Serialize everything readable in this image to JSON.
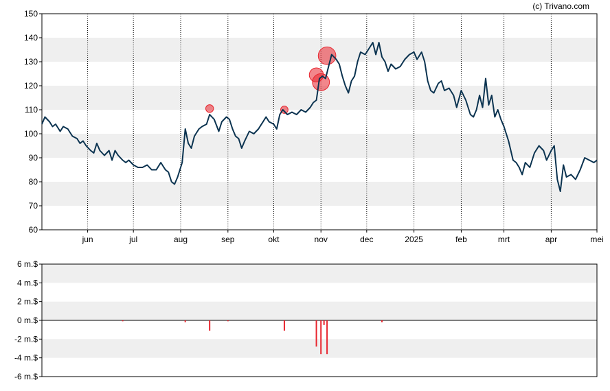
{
  "copyright": "(c) Trivano.com",
  "chart_data": [
    {
      "type": "line",
      "ylim": [
        60,
        150
      ],
      "yticks": [
        60,
        70,
        80,
        90,
        100,
        110,
        120,
        130,
        140,
        150
      ],
      "x_range": [
        "2024-05-02",
        "2025-05-01"
      ],
      "months": [
        {
          "label": "jun",
          "date": "2024-06-01"
        },
        {
          "label": "jul",
          "date": "2024-07-01"
        },
        {
          "label": "aug",
          "date": "2024-08-01"
        },
        {
          "label": "sep",
          "date": "2024-09-01"
        },
        {
          "label": "okt",
          "date": "2024-10-01"
        },
        {
          "label": "nov",
          "date": "2024-11-01"
        },
        {
          "label": "dec",
          "date": "2024-12-01"
        },
        {
          "label": "2025",
          "date": "2025-01-01"
        },
        {
          "label": "feb",
          "date": "2025-02-01"
        },
        {
          "label": "mrt",
          "date": "2025-03-01"
        },
        {
          "label": "apr",
          "date": "2025-04-01"
        },
        {
          "label": "mei",
          "date": "2025-05-01"
        }
      ],
      "grid": "vertical dotted lines at month starts, alternating horizontal bands",
      "series": [
        {
          "color": "#0b3350",
          "points": [
            [
              "2024-05-02",
              104
            ],
            [
              "2024-05-04",
              107
            ],
            [
              "2024-05-07",
              105
            ],
            [
              "2024-05-09",
              103
            ],
            [
              "2024-05-11",
              104
            ],
            [
              "2024-05-14",
              101
            ],
            [
              "2024-05-16",
              103
            ],
            [
              "2024-05-19",
              102
            ],
            [
              "2024-05-22",
              99
            ],
            [
              "2024-05-25",
              98
            ],
            [
              "2024-05-27",
              96
            ],
            [
              "2024-05-29",
              97
            ],
            [
              "2024-05-31",
              95
            ],
            [
              "2024-06-03",
              93
            ],
            [
              "2024-06-05",
              92
            ],
            [
              "2024-06-07",
              96
            ],
            [
              "2024-06-09",
              93
            ],
            [
              "2024-06-12",
              91
            ],
            [
              "2024-06-15",
              93
            ],
            [
              "2024-06-17",
              89
            ],
            [
              "2024-06-19",
              93
            ],
            [
              "2024-06-21",
              91
            ],
            [
              "2024-06-24",
              89
            ],
            [
              "2024-06-26",
              88
            ],
            [
              "2024-06-28",
              89
            ],
            [
              "2024-07-01",
              87
            ],
            [
              "2024-07-04",
              86
            ],
            [
              "2024-07-07",
              86
            ],
            [
              "2024-07-10",
              87
            ],
            [
              "2024-07-13",
              85
            ],
            [
              "2024-07-16",
              85
            ],
            [
              "2024-07-19",
              88
            ],
            [
              "2024-07-22",
              85
            ],
            [
              "2024-07-24",
              84
            ],
            [
              "2024-07-26",
              80
            ],
            [
              "2024-07-28",
              79
            ],
            [
              "2024-07-30",
              82
            ],
            [
              "2024-08-02",
              88
            ],
            [
              "2024-08-04",
              102
            ],
            [
              "2024-08-06",
              96
            ],
            [
              "2024-08-08",
              94
            ],
            [
              "2024-08-10",
              99
            ],
            [
              "2024-08-13",
              102
            ],
            [
              "2024-08-15",
              103
            ],
            [
              "2024-08-18",
              104
            ],
            [
              "2024-08-20",
              108
            ],
            [
              "2024-08-23",
              106
            ],
            [
              "2024-08-26",
              101
            ],
            [
              "2024-08-28",
              105
            ],
            [
              "2024-08-31",
              107
            ],
            [
              "2024-09-02",
              106
            ],
            [
              "2024-09-04",
              102
            ],
            [
              "2024-09-06",
              99
            ],
            [
              "2024-09-08",
              98
            ],
            [
              "2024-09-10",
              94
            ],
            [
              "2024-09-12",
              97
            ],
            [
              "2024-09-15",
              101
            ],
            [
              "2024-09-18",
              100
            ],
            [
              "2024-09-21",
              102
            ],
            [
              "2024-09-24",
              105
            ],
            [
              "2024-09-26",
              107
            ],
            [
              "2024-09-28",
              105
            ],
            [
              "2024-10-01",
              104
            ],
            [
              "2024-10-03",
              102
            ],
            [
              "2024-10-05",
              108
            ],
            [
              "2024-10-07",
              110
            ],
            [
              "2024-10-10",
              108
            ],
            [
              "2024-10-13",
              109
            ],
            [
              "2024-10-16",
              108
            ],
            [
              "2024-10-19",
              110
            ],
            [
              "2024-10-22",
              109
            ],
            [
              "2024-10-25",
              111
            ],
            [
              "2024-10-27",
              113
            ],
            [
              "2024-10-29",
              114
            ],
            [
              "2024-10-31",
              123
            ],
            [
              "2024-11-02",
              124
            ],
            [
              "2024-11-04",
              123
            ],
            [
              "2024-11-06",
              128
            ],
            [
              "2024-11-08",
              133
            ],
            [
              "2024-11-11",
              131
            ],
            [
              "2024-11-13",
              129
            ],
            [
              "2024-11-15",
              124
            ],
            [
              "2024-11-17",
              120
            ],
            [
              "2024-11-19",
              117
            ],
            [
              "2024-11-21",
              122
            ],
            [
              "2024-11-23",
              124
            ],
            [
              "2024-11-25",
              130
            ],
            [
              "2024-11-27",
              134
            ],
            [
              "2024-11-30",
              133
            ],
            [
              "2024-12-03",
              136
            ],
            [
              "2024-12-05",
              138
            ],
            [
              "2024-12-07",
              133
            ],
            [
              "2024-12-09",
              138
            ],
            [
              "2024-12-11",
              132
            ],
            [
              "2024-12-13",
              130
            ],
            [
              "2024-12-15",
              126
            ],
            [
              "2024-12-17",
              129
            ],
            [
              "2024-12-20",
              127
            ],
            [
              "2024-12-23",
              128
            ],
            [
              "2024-12-26",
              131
            ],
            [
              "2024-12-29",
              133
            ],
            [
              "2025-01-01",
              134
            ],
            [
              "2025-01-03",
              131
            ],
            [
              "2025-01-06",
              134
            ],
            [
              "2025-01-08",
              130
            ],
            [
              "2025-01-10",
              122
            ],
            [
              "2025-01-12",
              118
            ],
            [
              "2025-01-14",
              117
            ],
            [
              "2025-01-17",
              121
            ],
            [
              "2025-01-19",
              122
            ],
            [
              "2025-01-21",
              118
            ],
            [
              "2025-01-24",
              119
            ],
            [
              "2025-01-27",
              116
            ],
            [
              "2025-01-29",
              111
            ],
            [
              "2025-02-01",
              118
            ],
            [
              "2025-02-04",
              114
            ],
            [
              "2025-02-07",
              108
            ],
            [
              "2025-02-09",
              107
            ],
            [
              "2025-02-11",
              110
            ],
            [
              "2025-02-13",
              116
            ],
            [
              "2025-02-15",
              111
            ],
            [
              "2025-02-17",
              123
            ],
            [
              "2025-02-19",
              112
            ],
            [
              "2025-02-21",
              116
            ],
            [
              "2025-02-23",
              107
            ],
            [
              "2025-02-25",
              110
            ],
            [
              "2025-02-27",
              106
            ],
            [
              "2025-03-01",
              103
            ],
            [
              "2025-03-04",
              97
            ],
            [
              "2025-03-07",
              89
            ],
            [
              "2025-03-09",
              88
            ],
            [
              "2025-03-11",
              86
            ],
            [
              "2025-03-13",
              83
            ],
            [
              "2025-03-15",
              88
            ],
            [
              "2025-03-18",
              86
            ],
            [
              "2025-03-21",
              92
            ],
            [
              "2025-03-24",
              95
            ],
            [
              "2025-03-27",
              93
            ],
            [
              "2025-03-29",
              89
            ],
            [
              "2025-04-01",
              93
            ],
            [
              "2025-04-03",
              95
            ],
            [
              "2025-04-05",
              81
            ],
            [
              "2025-04-07",
              76
            ],
            [
              "2025-04-09",
              87
            ],
            [
              "2025-04-11",
              82
            ],
            [
              "2025-04-14",
              83
            ],
            [
              "2025-04-17",
              81
            ],
            [
              "2025-04-20",
              85
            ],
            [
              "2025-04-23",
              90
            ],
            [
              "2025-04-26",
              89
            ],
            [
              "2025-04-29",
              88
            ],
            [
              "2025-05-01",
              89
            ]
          ]
        }
      ],
      "markers": [
        {
          "date": "2024-08-20",
          "value": 110.5,
          "size": 0.12
        },
        {
          "date": "2024-10-08",
          "value": 110,
          "size": 0.1
        },
        {
          "date": "2024-10-29",
          "value": 124.5,
          "size": 0.45
        },
        {
          "date": "2024-11-01",
          "value": 121.5,
          "size": 0.6
        },
        {
          "date": "2024-11-05",
          "value": 132.5,
          "size": 0.63
        }
      ]
    },
    {
      "type": "bar",
      "ylim": [
        -6,
        6
      ],
      "yticks": [
        {
          "value": 6,
          "label": "6 m.$"
        },
        {
          "value": 4,
          "label": "4 m.$"
        },
        {
          "value": 2,
          "label": "2 m.$"
        },
        {
          "value": 0,
          "label": "0 m.$"
        },
        {
          "value": -2,
          "label": "-2 m.$"
        },
        {
          "value": -4,
          "label": "-4 m.$"
        },
        {
          "value": -6,
          "label": "-6 m.$"
        }
      ],
      "x_range": [
        "2024-05-02",
        "2025-05-01"
      ],
      "bars": [
        {
          "date": "2024-06-24",
          "value": -0.1
        },
        {
          "date": "2024-08-04",
          "value": -0.2
        },
        {
          "date": "2024-08-20",
          "value": -1.1
        },
        {
          "date": "2024-09-01",
          "value": -0.1
        },
        {
          "date": "2024-10-08",
          "value": -1.1
        },
        {
          "date": "2024-10-29",
          "value": -2.8
        },
        {
          "date": "2024-11-01",
          "value": -3.6
        },
        {
          "date": "2024-11-03",
          "value": -0.5
        },
        {
          "date": "2024-11-05",
          "value": -3.6
        },
        {
          "date": "2024-12-11",
          "value": -0.2
        }
      ],
      "bar_color": "#e8252e"
    }
  ]
}
